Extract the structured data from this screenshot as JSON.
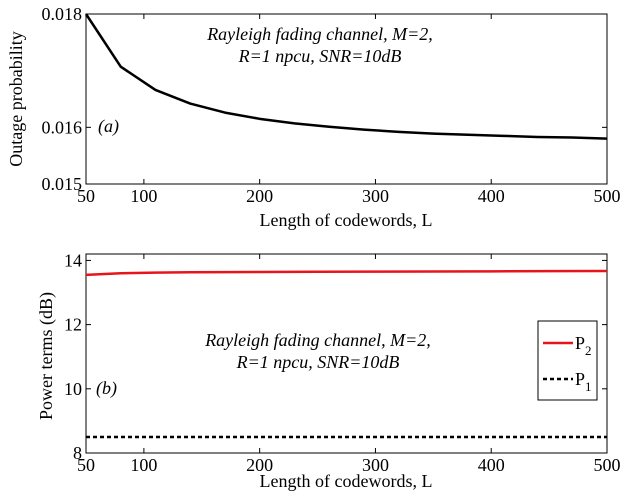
{
  "chart_data": [
    {
      "panel_label": "(a)",
      "type": "line",
      "xlabel": "Length of codewords, L",
      "ylabel": "Outage probability",
      "xlim": [
        50,
        500
      ],
      "ylim": [
        0.015,
        0.018
      ],
      "xticks": [
        {
          "value": 50,
          "label": "50"
        },
        {
          "value": 100,
          "label": "100"
        },
        {
          "value": 200,
          "label": "200"
        },
        {
          "value": 300,
          "label": "300"
        },
        {
          "value": 400,
          "label": "400"
        },
        {
          "value": 500,
          "label": "500"
        }
      ],
      "yticks": [
        {
          "value": 0.015,
          "label": "0.015"
        },
        {
          "value": 0.016,
          "label": "0.016"
        },
        {
          "value": 0.018,
          "label": "0.018"
        }
      ],
      "annotation_lines": [
        "Rayleigh fading channel, M=2,",
        "R=1 npcu, SNR=10dB"
      ],
      "series": [
        {
          "color": "#000000",
          "style": "solid",
          "x": [
            50,
            80,
            110,
            140,
            170,
            200,
            230,
            260,
            290,
            320,
            350,
            380,
            410,
            440,
            470,
            500
          ],
          "values": [
            0.018,
            0.01707,
            0.01666,
            0.01642,
            0.01626,
            0.01615,
            0.01607,
            0.01601,
            0.01596,
            0.01592,
            0.01589,
            0.01587,
            0.01585,
            0.01583,
            0.01582,
            0.0158
          ]
        }
      ]
    },
    {
      "panel_label": "(b)",
      "type": "line",
      "xlabel": "Length of codewords, L",
      "ylabel": "Power terms (dB)",
      "xlim": [
        50,
        500
      ],
      "ylim": [
        8,
        14.2
      ],
      "xticks": [
        {
          "value": 50,
          "label": "50"
        },
        {
          "value": 100,
          "label": "100"
        },
        {
          "value": 200,
          "label": "200"
        },
        {
          "value": 300,
          "label": "300"
        },
        {
          "value": 400,
          "label": "400"
        },
        {
          "value": 500,
          "label": "500"
        }
      ],
      "yticks": [
        {
          "value": 8,
          "label": "8"
        },
        {
          "value": 10,
          "label": "10"
        },
        {
          "value": 12,
          "label": "12"
        },
        {
          "value": 14,
          "label": "14"
        }
      ],
      "annotation_lines": [
        "Rayleigh fading channel, M=2,",
        "R=1 npcu, SNR=10dB"
      ],
      "legend_position": "right",
      "series": [
        {
          "name": "P",
          "subscript": "2",
          "color": "#e8141c",
          "style": "solid",
          "x": [
            50,
            80,
            110,
            140,
            170,
            200,
            250,
            300,
            350,
            400,
            450,
            500
          ],
          "values": [
            13.55,
            13.6,
            13.62,
            13.63,
            13.635,
            13.64,
            13.645,
            13.65,
            13.655,
            13.66,
            13.665,
            13.67
          ]
        },
        {
          "name": "P",
          "subscript": "1",
          "color": "#000000",
          "style": "dashed",
          "x": [
            50,
            500
          ],
          "values": [
            8.5,
            8.5
          ]
        }
      ]
    }
  ]
}
